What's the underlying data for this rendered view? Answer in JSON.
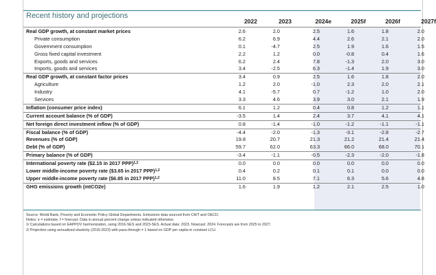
{
  "title": "Recent history and projections",
  "years": [
    "2022",
    "2023",
    "2024e",
    "2025f",
    "2026f",
    "2027f"
  ],
  "rows": [
    {
      "label": "Real GDP growth, at constant market prices",
      "values": [
        "2.6",
        "2.0",
        "2.5",
        "1.6",
        "1.8",
        "2.0"
      ]
    },
    {
      "label": "Private consumption",
      "values": [
        "6.2",
        "6.9",
        "4.4",
        "2.6",
        "2.1",
        "2.0"
      ]
    },
    {
      "label": "Government consumption",
      "values": [
        "0.1",
        "-4.7",
        "2.5",
        "1.9",
        "1.6",
        "1.5"
      ]
    },
    {
      "label": "Gross fixed capital investment",
      "values": [
        "2.2",
        "1.2",
        "0.0",
        "-0.8",
        "0.4",
        "1.6"
      ]
    },
    {
      "label": "Exports, goods and services",
      "values": [
        "6.2",
        "2.4",
        "7.8",
        "-1.3",
        "2.0",
        "3.0"
      ]
    },
    {
      "label": "Imports, goods and services",
      "values": [
        "3.4",
        "-2.5",
        "6.3",
        "-1.4",
        "1.9",
        "3.0"
      ]
    },
    {
      "label": "Real GDP growth, at constant factor prices",
      "values": [
        "3.4",
        "0.9",
        "2.5",
        "1.6",
        "1.8",
        "2.0"
      ]
    },
    {
      "label": "Agriculture",
      "values": [
        "1.2",
        "2.0",
        "-1.0",
        "2.3",
        "2.0",
        "2.1"
      ]
    },
    {
      "label": "Industry",
      "values": [
        "4.1",
        "-5.7",
        "0.7",
        "-1.2",
        "1.0",
        "2.0"
      ]
    },
    {
      "label": "Services",
      "values": [
        "3.3",
        "4.6",
        "3.9",
        "3.0",
        "2.1",
        "1.9"
      ]
    },
    {
      "label": "Inflation (consumer price index)",
      "values": [
        "6.1",
        "1.2",
        "0.4",
        "0.8",
        "1.2",
        "1.1"
      ]
    },
    {
      "label": "Current account balance (% of GDP)",
      "values": [
        "-3.5",
        "1.4",
        "2.4",
        "3.7",
        "4.1",
        "4.1"
      ]
    },
    {
      "label": "Net foreign direct investment inflow (% of GDP)",
      "values": [
        "0.8",
        "-1.4",
        "-1.0",
        "-1.2",
        "-1.1",
        "-1.1"
      ]
    },
    {
      "label": "Fiscal balance (% of GDP)",
      "values": [
        "-4.4",
        "-2.0",
        "-1.3",
        "-3.1",
        "-2.8",
        "-2.7"
      ]
    },
    {
      "label": "Revenues (% of GDP)",
      "values": [
        "19.8",
        "20.7",
        "21.3",
        "21.2",
        "21.4",
        "21.4"
      ]
    },
    {
      "label": "Debt (% of GDP)",
      "values": [
        "59.7",
        "62.0",
        "63.3",
        "66.0",
        "68.0",
        "70.1"
      ]
    },
    {
      "label": "Primary balance (% of GDP)",
      "values": [
        "-3.4",
        "-1.1",
        "-0.5",
        "-2.3",
        "-2.0",
        "-1.8"
      ]
    },
    {
      "label": "International poverty rate ($2.15 in 2017 PPP)",
      "sup": "1,2",
      "values": [
        "0.0",
        "0.0",
        "0.0",
        "0.0",
        "0.0",
        "0.0"
      ]
    },
    {
      "label": "Lower middle-income poverty rate ($3.65 in 2017 PPP)",
      "sup": "1,2",
      "values": [
        "0.4",
        "0.2",
        "0.1",
        "0.1",
        "0.0",
        "0.0"
      ]
    },
    {
      "label": "Upper middle-income poverty rate ($6.85 in 2017 PPP)",
      "sup": "1,2",
      "values": [
        "11.0",
        "8.5",
        "7.1",
        "6.3",
        "5.6",
        "4.8"
      ]
    },
    {
      "label": "GHG emissions growth (mtCO2e)",
      "values": [
        "1.6",
        "1.9",
        "1.2",
        "2.1",
        "2.5",
        "1.0"
      ]
    }
  ],
  "notes": [
    "Source: World Bank, Poverty and Economic Policy Global Departments. Emissions data sourced from CAIT and OECD.",
    "Notes: e = estimate, f = forecast. Data in annual percent change unless indicated otherwise.",
    "1/ Calculations based on EAPPOV harmonization, using 2016-SES and 2023-SES. Actual data: 2023. Nowcast: 2024. Forecasts are from 2025 to 2027.",
    "2/ Projection using annualized elasticity (2016-2023) with pass-through = 1 based on GDP per capita in constant LCU."
  ]
}
